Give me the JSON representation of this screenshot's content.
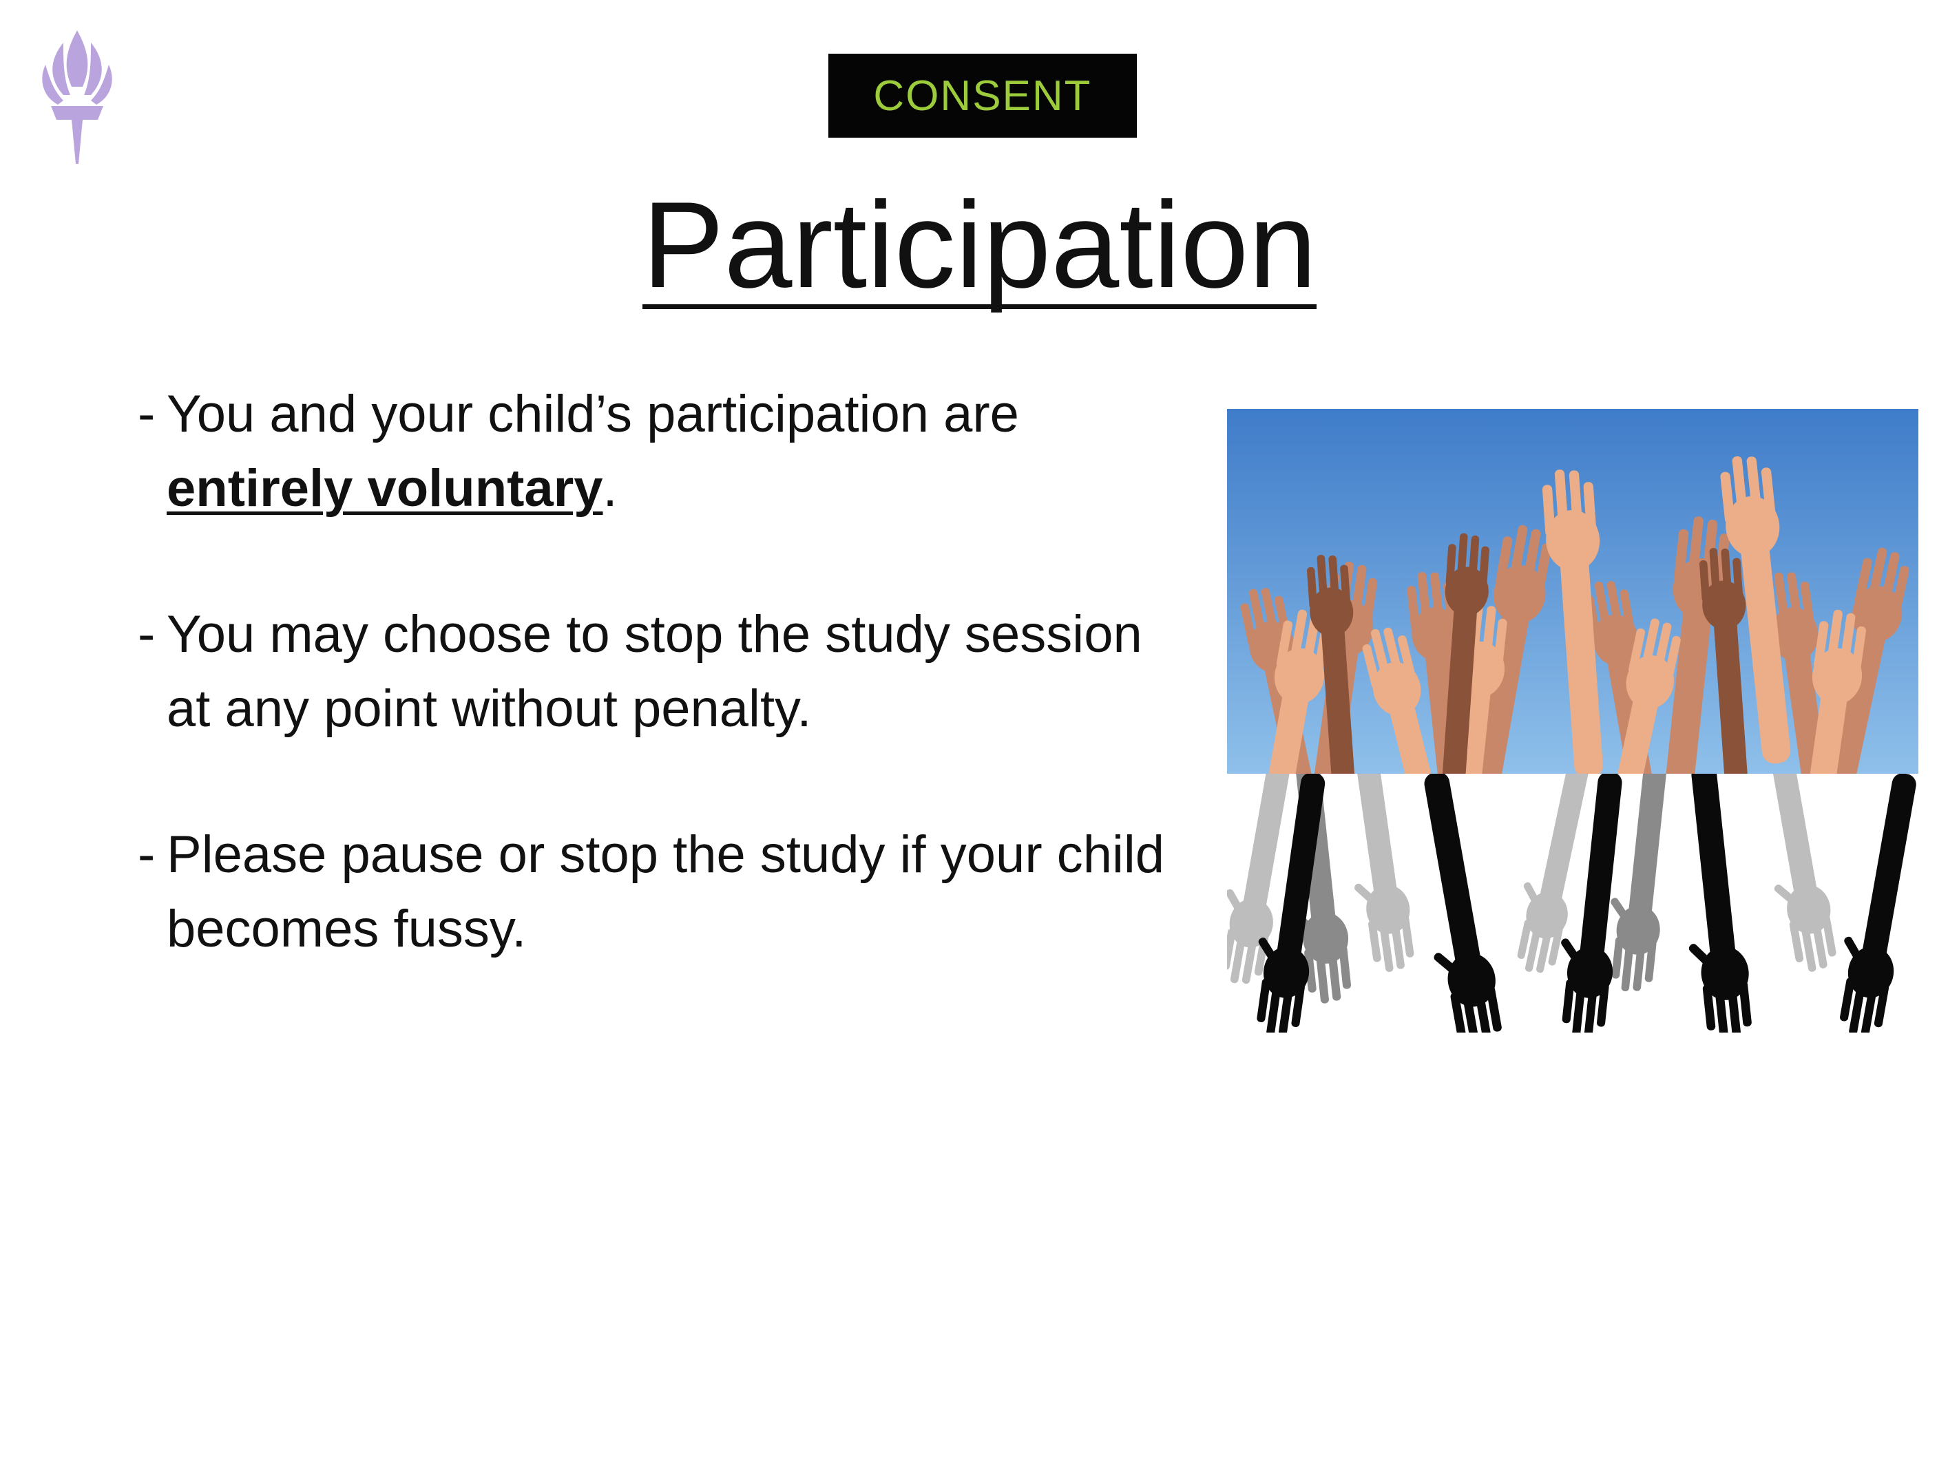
{
  "slide": {
    "tag": "CONSENT",
    "title": "Participation",
    "bullets": [
      {
        "dash": "-",
        "lead": "You and your child’s participation are ",
        "emphasis": "entirely voluntary",
        "tail": "."
      },
      {
        "dash": "-",
        "text": "You may choose to stop the study session at any point without penalty."
      },
      {
        "dash": "-",
        "text": "Please pause or stop the study if your child becomes fussy."
      }
    ]
  },
  "images": {
    "logo_icon": "torch-icon",
    "photo_icon": "raised-hands-image"
  },
  "colors": {
    "tag_background": "#050505",
    "tag_text": "#9ccc3c",
    "logo": "#b9a4de",
    "sky": "#4a86d0",
    "skin": "#e8a27a"
  }
}
